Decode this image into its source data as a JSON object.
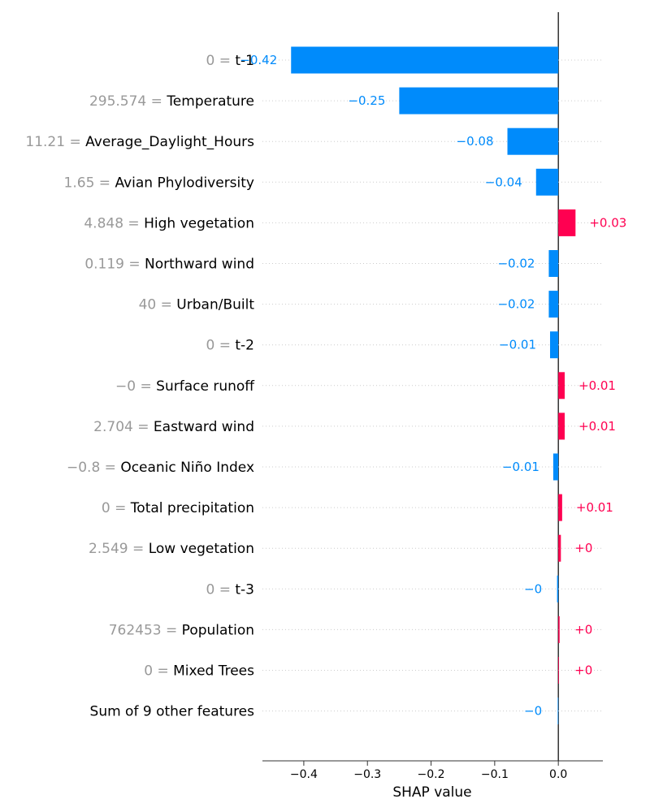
{
  "chart_data": {
    "type": "bar",
    "orientation": "horizontal",
    "title": "",
    "xlabel": "SHAP value",
    "ylabel": "",
    "xlim": [
      -0.465,
      0.07
    ],
    "xticks": [
      -0.4,
      -0.3,
      -0.2,
      -0.1,
      0.0
    ],
    "xtick_labels": [
      "−0.4",
      "−0.3",
      "−0.2",
      "−0.1",
      "0.0"
    ],
    "grid": "dotted horizontal guide lines",
    "colors": {
      "positive": "#ff0051",
      "negative": "#008bfb",
      "feature_value": "#999999"
    },
    "features": [
      {
        "feature_value": "0",
        "name": "t-1",
        "value": -0.42,
        "label": "−0.42"
      },
      {
        "feature_value": "295.574",
        "name": "Temperature",
        "value": -0.25,
        "label": "−0.25"
      },
      {
        "feature_value": "11.21",
        "name": "Average_Daylight_Hours",
        "value": -0.08,
        "label": "−0.08"
      },
      {
        "feature_value": "1.65",
        "name": "Avian Phylodiversity",
        "value": -0.035,
        "label": "−0.04"
      },
      {
        "feature_value": "4.848",
        "name": "High vegetation",
        "value": 0.027,
        "label": "+0.03"
      },
      {
        "feature_value": "0.119",
        "name": "Northward wind",
        "value": -0.015,
        "label": "−0.02"
      },
      {
        "feature_value": "40",
        "name": "Urban/Built",
        "value": -0.015,
        "label": "−0.02"
      },
      {
        "feature_value": "0",
        "name": "t-2",
        "value": -0.013,
        "label": "−0.01"
      },
      {
        "feature_value": "−0",
        "name": "Surface runoff",
        "value": 0.01,
        "label": "+0.01"
      },
      {
        "feature_value": "2.704",
        "name": "Eastward wind",
        "value": 0.01,
        "label": "+0.01"
      },
      {
        "feature_value": "−0.8",
        "name": "Oceanic Niño Index",
        "value": -0.008,
        "label": "−0.01"
      },
      {
        "feature_value": "0",
        "name": "Total precipitation",
        "value": 0.006,
        "label": "+0.01"
      },
      {
        "feature_value": "2.549",
        "name": "Low vegetation",
        "value": 0.004,
        "label": "+0"
      },
      {
        "feature_value": "0",
        "name": "t-3",
        "value": -0.002,
        "label": "−0"
      },
      {
        "feature_value": "762453",
        "name": "Population",
        "value": 0.002,
        "label": "+0"
      },
      {
        "feature_value": "0",
        "name": "Mixed Trees",
        "value": 0.001,
        "label": "+0"
      },
      {
        "feature_value": "",
        "name": "Sum of 9 other features",
        "value": -0.001,
        "label": "−0"
      }
    ]
  }
}
